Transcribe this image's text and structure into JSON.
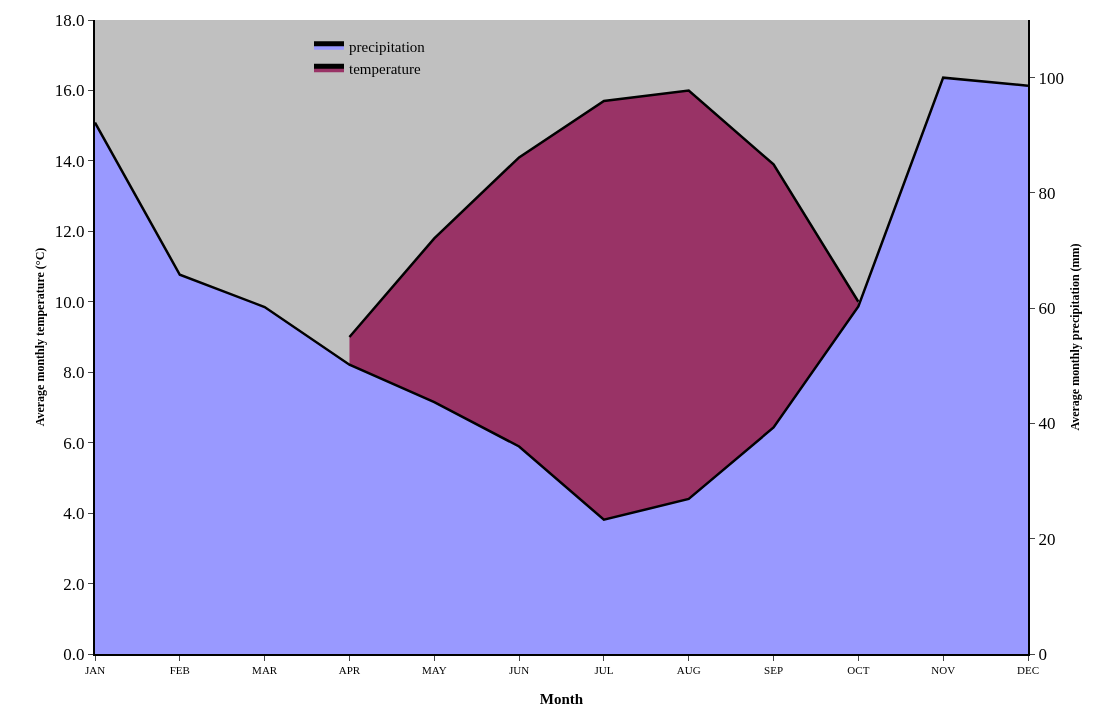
{
  "chart_data": {
    "type": "area",
    "xlabel": "Month",
    "ylabel": "Average monthly temperature (°C)",
    "y2label": "Average monthly precipitation (mm)",
    "categories": [
      "JAN",
      "FEB",
      "MAR",
      "APR",
      "MAY",
      "JUN",
      "JUL",
      "AUG",
      "SEP",
      "OCT",
      "NOV",
      "DEC"
    ],
    "series": [
      {
        "name": "temperature",
        "color": "#993366",
        "values": [
          null,
          null,
          null,
          9.0,
          11.8,
          14.1,
          15.7,
          16.0,
          13.9,
          10.0,
          null,
          null
        ]
      },
      {
        "name": "precipitation",
        "color": "#9999ff",
        "axis": "y2",
        "values": [
          92.2,
          65.8,
          60.2,
          50.2,
          43.7,
          36.0,
          23.3,
          26.9,
          39.3,
          60.3,
          100.0,
          98.6
        ]
      }
    ],
    "ylim": [
      0,
      18
    ],
    "yticks": [
      {
        "value": 0,
        "label": "0.0"
      },
      {
        "value": 2,
        "label": "2.0"
      },
      {
        "value": 4,
        "label": "4.0"
      },
      {
        "value": 6,
        "label": "6.0"
      },
      {
        "value": 8,
        "label": "8.0"
      },
      {
        "value": 10,
        "label": "10.0"
      },
      {
        "value": 12,
        "label": "12.0"
      },
      {
        "value": 14,
        "label": "14.0"
      },
      {
        "value": 16,
        "label": "16.0"
      },
      {
        "value": 18,
        "label": "18.0"
      }
    ],
    "y2lim": [
      0,
      110
    ],
    "y2ticks": [
      0,
      20,
      40,
      60,
      80,
      100
    ],
    "grid": false,
    "legend": "top",
    "marker": "none",
    "line_style": "solid"
  }
}
